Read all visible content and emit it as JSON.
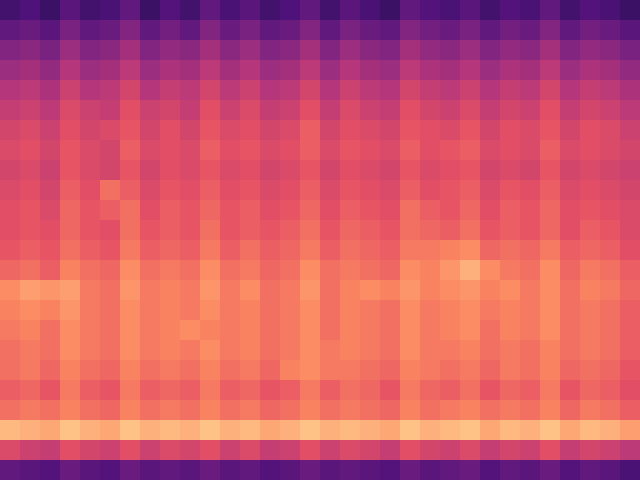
{
  "chart_data": {
    "type": "heatmap",
    "tick_labels": false,
    "color_range": [
      0,
      100
    ],
    "cells": [
      [
        22,
        25,
        20,
        28,
        22,
        24,
        30,
        20,
        26,
        22,
        30,
        24,
        28,
        22,
        25,
        30,
        22,
        28,
        24,
        20,
        30,
        26,
        24,
        28,
        22,
        26,
        24,
        30,
        22,
        26,
        24,
        20
      ],
      [
        30,
        32,
        28,
        36,
        30,
        32,
        38,
        30,
        34,
        30,
        38,
        32,
        36,
        30,
        32,
        38,
        30,
        36,
        32,
        30,
        38,
        34,
        32,
        36,
        30,
        34,
        32,
        38,
        30,
        34,
        32,
        28
      ],
      [
        38,
        40,
        36,
        44,
        38,
        40,
        46,
        38,
        42,
        40,
        46,
        40,
        44,
        38,
        40,
        46,
        38,
        44,
        40,
        38,
        46,
        42,
        40,
        44,
        38,
        42,
        40,
        46,
        38,
        42,
        40,
        36
      ],
      [
        44,
        46,
        42,
        50,
        44,
        46,
        52,
        44,
        48,
        46,
        52,
        46,
        50,
        44,
        46,
        52,
        44,
        50,
        46,
        44,
        52,
        48,
        46,
        50,
        44,
        48,
        46,
        52,
        44,
        48,
        46,
        42
      ],
      [
        50,
        52,
        48,
        56,
        50,
        52,
        58,
        50,
        54,
        52,
        58,
        52,
        56,
        50,
        52,
        58,
        50,
        56,
        52,
        50,
        58,
        54,
        52,
        56,
        50,
        54,
        52,
        58,
        50,
        54,
        52,
        48
      ],
      [
        54,
        56,
        52,
        60,
        56,
        54,
        62,
        56,
        58,
        54,
        62,
        56,
        60,
        54,
        56,
        62,
        54,
        60,
        56,
        54,
        62,
        58,
        56,
        60,
        54,
        58,
        56,
        62,
        54,
        58,
        56,
        52
      ],
      [
        58,
        60,
        56,
        62,
        58,
        60,
        64,
        58,
        62,
        58,
        64,
        60,
        62,
        58,
        60,
        66,
        58,
        62,
        60,
        58,
        64,
        62,
        60,
        64,
        58,
        62,
        60,
        64,
        58,
        62,
        60,
        56
      ],
      [
        60,
        62,
        58,
        64,
        60,
        58,
        66,
        60,
        62,
        60,
        66,
        62,
        64,
        60,
        62,
        66,
        60,
        64,
        62,
        60,
        66,
        62,
        64,
        66,
        60,
        62,
        60,
        66,
        60,
        62,
        60,
        58
      ],
      [
        58,
        60,
        56,
        64,
        60,
        58,
        64,
        58,
        62,
        60,
        64,
        60,
        62,
        58,
        60,
        64,
        58,
        62,
        60,
        58,
        64,
        60,
        62,
        64,
        58,
        60,
        58,
        64,
        58,
        60,
        58,
        56
      ],
      [
        60,
        62,
        58,
        66,
        62,
        70,
        66,
        60,
        64,
        62,
        66,
        62,
        64,
        60,
        62,
        66,
        60,
        64,
        62,
        60,
        66,
        62,
        64,
        66,
        60,
        64,
        62,
        66,
        60,
        62,
        60,
        58
      ],
      [
        62,
        64,
        60,
        68,
        64,
        66,
        70,
        62,
        66,
        64,
        68,
        64,
        66,
        62,
        64,
        68,
        62,
        66,
        64,
        62,
        70,
        66,
        64,
        68,
        62,
        66,
        64,
        68,
        62,
        64,
        62,
        60
      ],
      [
        62,
        64,
        62,
        68,
        64,
        62,
        70,
        64,
        66,
        64,
        70,
        64,
        66,
        64,
        66,
        70,
        64,
        68,
        66,
        64,
        70,
        68,
        66,
        70,
        64,
        66,
        64,
        68,
        62,
        66,
        64,
        60
      ],
      [
        64,
        66,
        64,
        70,
        66,
        64,
        72,
        66,
        68,
        66,
        72,
        66,
        70,
        66,
        68,
        72,
        66,
        70,
        68,
        66,
        72,
        72,
        74,
        76,
        68,
        70,
        68,
        72,
        66,
        68,
        66,
        62
      ],
      [
        68,
        70,
        66,
        74,
        70,
        68,
        76,
        70,
        72,
        70,
        76,
        70,
        72,
        68,
        70,
        76,
        70,
        72,
        70,
        68,
        76,
        74,
        78,
        84,
        76,
        72,
        70,
        76,
        68,
        72,
        70,
        66
      ],
      [
        76,
        80,
        78,
        80,
        72,
        70,
        78,
        72,
        74,
        72,
        78,
        72,
        76,
        70,
        72,
        78,
        70,
        74,
        76,
        74,
        78,
        74,
        76,
        78,
        74,
        76,
        72,
        76,
        70,
        74,
        72,
        68
      ],
      [
        74,
        76,
        74,
        78,
        72,
        70,
        76,
        72,
        74,
        72,
        76,
        72,
        74,
        70,
        72,
        76,
        70,
        74,
        72,
        70,
        76,
        72,
        74,
        76,
        72,
        74,
        72,
        76,
        70,
        72,
        70,
        66
      ],
      [
        72,
        74,
        70,
        76,
        72,
        70,
        76,
        72,
        74,
        76,
        74,
        72,
        74,
        70,
        72,
        76,
        70,
        74,
        72,
        70,
        76,
        72,
        74,
        76,
        70,
        74,
        72,
        76,
        70,
        72,
        70,
        66
      ],
      [
        70,
        72,
        70,
        76,
        72,
        70,
        76,
        72,
        74,
        72,
        76,
        72,
        74,
        70,
        72,
        76,
        72,
        74,
        72,
        70,
        76,
        72,
        72,
        74,
        70,
        72,
        70,
        74,
        70,
        72,
        70,
        66
      ],
      [
        70,
        72,
        68,
        74,
        70,
        68,
        74,
        70,
        72,
        70,
        74,
        70,
        72,
        68,
        74,
        76,
        72,
        72,
        70,
        68,
        74,
        72,
        70,
        72,
        68,
        72,
        70,
        74,
        68,
        70,
        68,
        64
      ],
      [
        66,
        68,
        64,
        72,
        66,
        64,
        72,
        66,
        68,
        66,
        72,
        66,
        68,
        64,
        66,
        72,
        66,
        70,
        68,
        64,
        72,
        68,
        66,
        70,
        64,
        68,
        66,
        72,
        64,
        68,
        66,
        62
      ],
      [
        70,
        72,
        70,
        74,
        70,
        68,
        74,
        70,
        72,
        70,
        74,
        70,
        72,
        68,
        70,
        74,
        70,
        72,
        70,
        68,
        74,
        70,
        72,
        74,
        70,
        72,
        70,
        74,
        68,
        72,
        70,
        66
      ],
      [
        86,
        84,
        82,
        88,
        84,
        82,
        88,
        84,
        86,
        84,
        88,
        84,
        86,
        82,
        84,
        88,
        84,
        86,
        84,
        82,
        88,
        84,
        86,
        88,
        82,
        86,
        84,
        88,
        82,
        86,
        84,
        80
      ],
      [
        60,
        56,
        54,
        62,
        58,
        56,
        62,
        56,
        60,
        58,
        62,
        56,
        60,
        54,
        56,
        62,
        56,
        60,
        58,
        54,
        62,
        58,
        56,
        60,
        54,
        58,
        56,
        62,
        54,
        58,
        56,
        52
      ],
      [
        30,
        28,
        26,
        32,
        28,
        26,
        32,
        28,
        30,
        28,
        32,
        28,
        30,
        26,
        28,
        32,
        28,
        30,
        28,
        26,
        32,
        28,
        30,
        32,
        26,
        30,
        28,
        32,
        26,
        30,
        28,
        24
      ]
    ]
  }
}
